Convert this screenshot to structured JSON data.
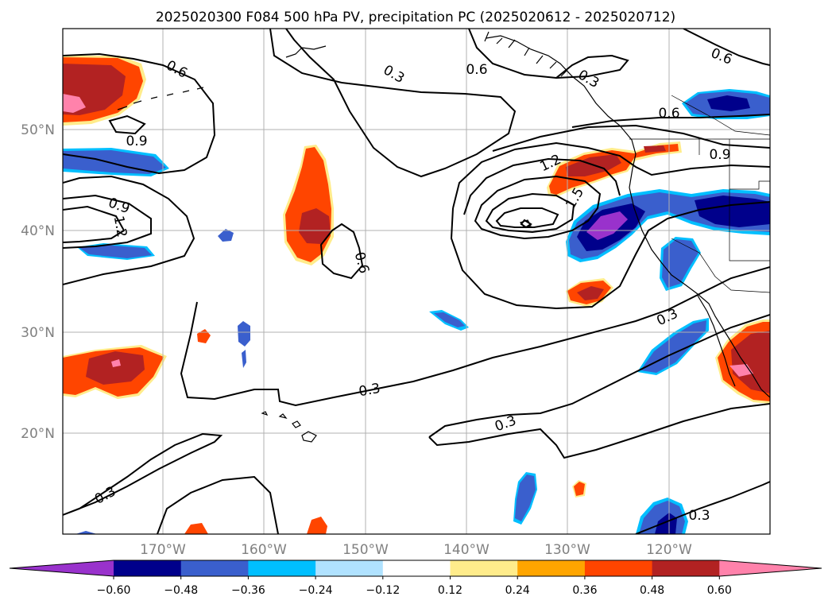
{
  "title": "2025020300 F084 500 hPa PV, precipitation PC (2025020612 - 2025020712)",
  "map": {
    "lat_labels": [
      "50°N",
      "40°N",
      "30°N",
      "20°N"
    ],
    "lon_labels": [
      "170°W",
      "160°W",
      "150°W",
      "140°W",
      "130°W",
      "120°W"
    ],
    "contour_labels": [
      "0.6",
      "0.3",
      "0.6",
      "0.3",
      "0.6",
      "0.6",
      "0.9",
      "0.9",
      "1.2",
      "0.9",
      "1.2",
      "1.5",
      "0.6",
      "0.3",
      "0.3",
      "0.3",
      "0.3",
      "0.3"
    ]
  },
  "colorbar": {
    "ticks": [
      "−0.60",
      "−0.48",
      "−0.36",
      "−0.24",
      "−0.12",
      "0.12",
      "0.24",
      "0.36",
      "0.48",
      "0.60"
    ],
    "colors": [
      "#9932cc",
      "#00008b",
      "#3a5fcd",
      "#00bfff",
      "#b0e2ff",
      "#ffffff",
      "#ffec8b",
      "#ffa500",
      "#ff4500",
      "#b22222",
      "#ff82ab"
    ]
  },
  "colors": {
    "negative_dark": "#00008b",
    "negative_mid": "#3a5fcd",
    "negative_light": "#00bfff",
    "positive_orange": "#ff4500",
    "positive_red": "#b22222",
    "positive_pink": "#ff82ab",
    "grid": "#b0b0b0"
  }
}
